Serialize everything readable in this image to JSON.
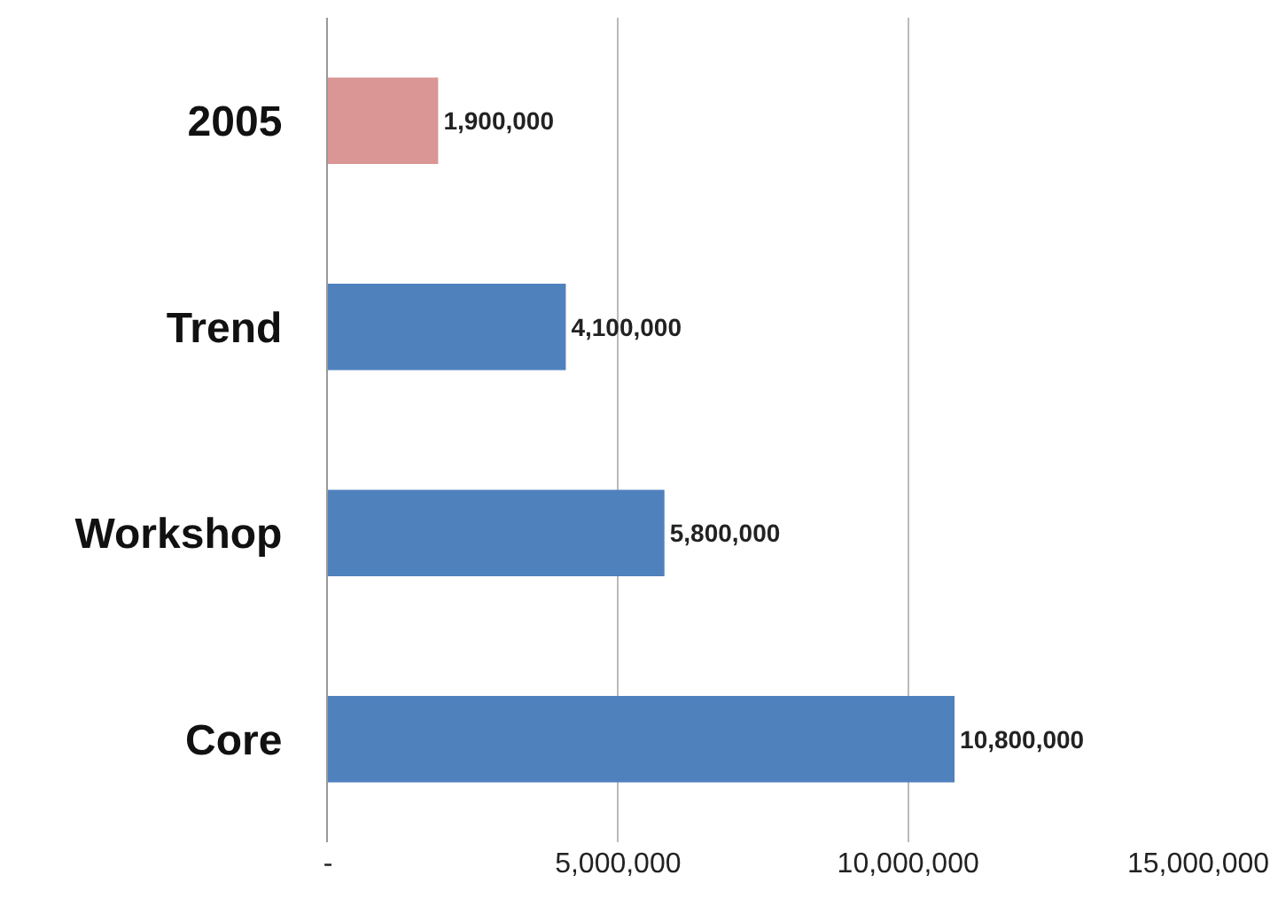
{
  "chart_data": {
    "type": "bar",
    "orientation": "horizontal",
    "categories": [
      "2005",
      "Trend",
      "Workshop",
      "Core"
    ],
    "values": [
      1900000,
      4100000,
      5800000,
      10800000
    ],
    "colors": [
      "#d99694",
      "#4f81bd",
      "#4f81bd",
      "#4f81bd"
    ],
    "xlim": [
      0,
      15000000
    ],
    "xticks": [
      {
        "value": 0,
        "label": "-"
      },
      {
        "value": 5000000,
        "label": "5,000,000"
      },
      {
        "value": 10000000,
        "label": "10,000,000"
      },
      {
        "value": 15000000,
        "label": "15,000,000"
      }
    ],
    "grid": "x",
    "value_labels": [
      "1,900,000",
      "4,100,000",
      "5,800,000",
      "10,800,000"
    ]
  }
}
